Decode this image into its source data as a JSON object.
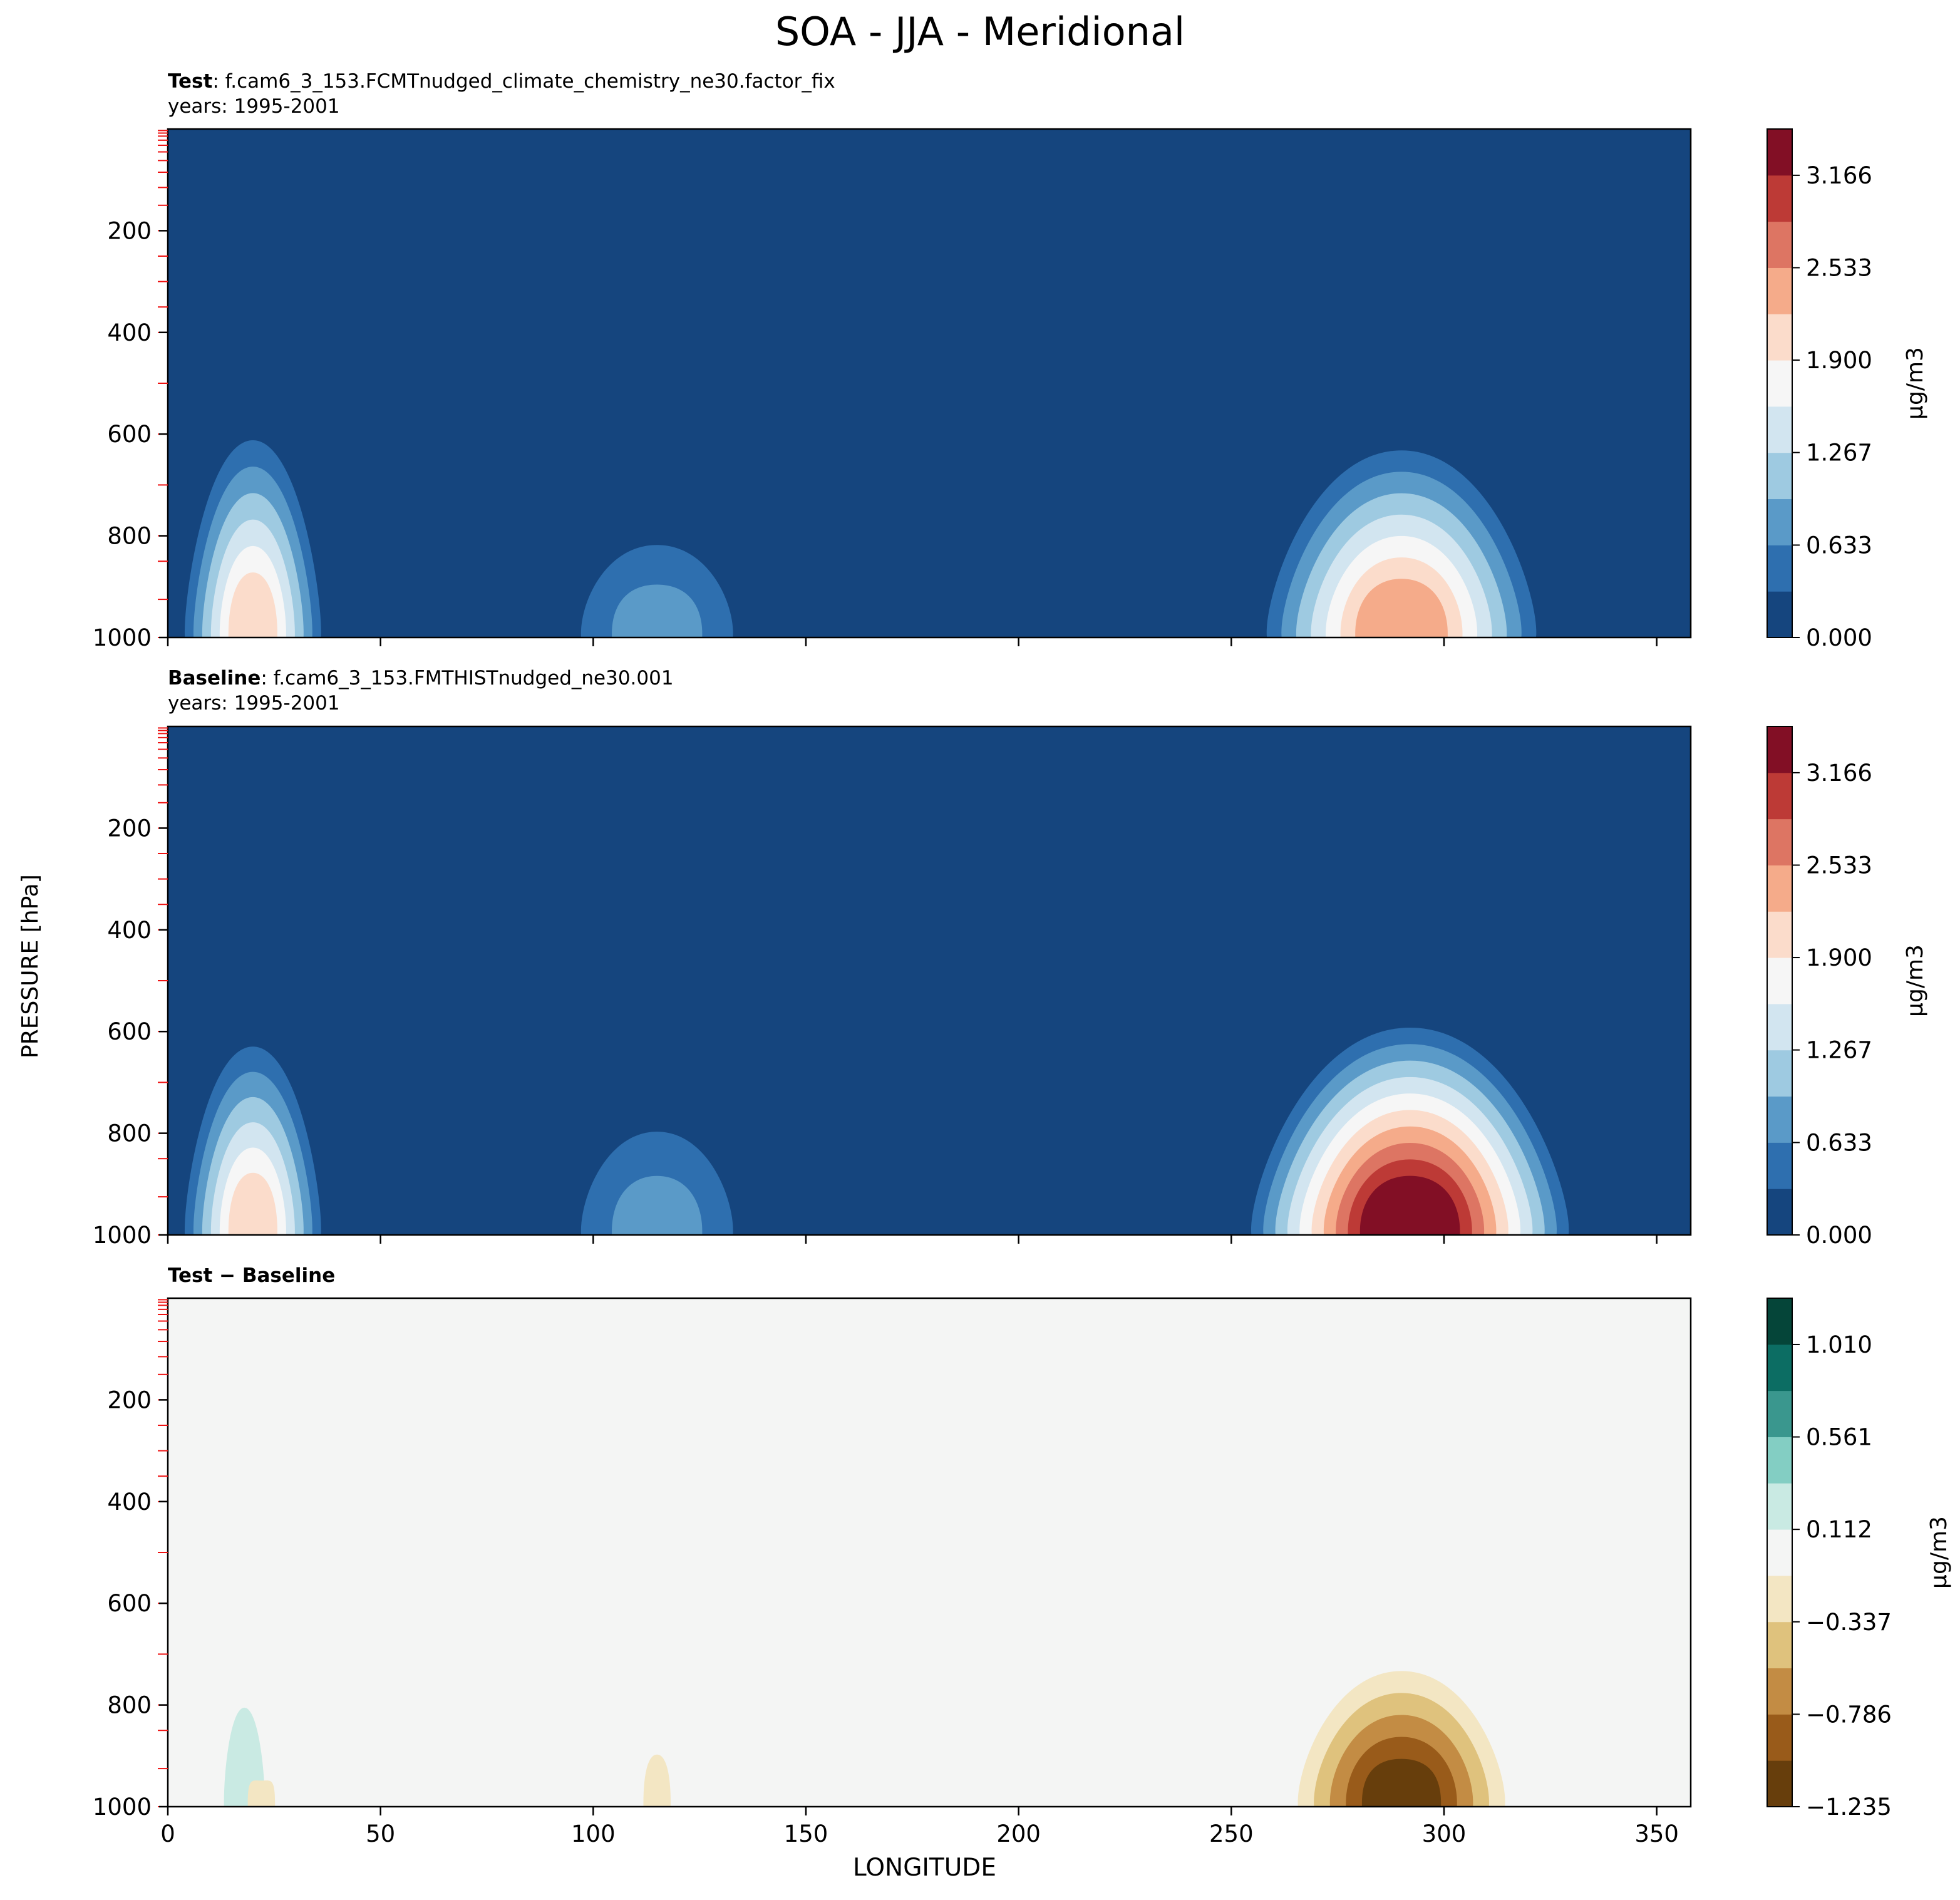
{
  "figure": {
    "title": "SOA - JJA - Meridional",
    "ylabel": "PRESSURE [hPa]",
    "xlabel": "LONGITUDE"
  },
  "panels": [
    {
      "label_bold": "Test",
      "label_text": ": f.cam6_3_153.FCMTnudged_climate_chemistry_ne30.factor_fix",
      "years": "years: 1995-2001"
    },
    {
      "label_bold": "Baseline",
      "label_text": ": f.cam6_3_153.FMTHISTnudged_ne30.001",
      "years": "years: 1995-2001"
    },
    {
      "label_bold": "Test − Baseline",
      "label_text": "",
      "years": ""
    }
  ],
  "colorbars": [
    {
      "units": "μg/m3",
      "ticks": [
        "0.000",
        "0.633",
        "1.267",
        "1.900",
        "2.533",
        "3.166"
      ],
      "tick_values": [
        0,
        0.633,
        1.267,
        1.9,
        2.533,
        3.166
      ],
      "min": 0,
      "max": 3.483,
      "colors": [
        "#15457e",
        "#2e6faf",
        "#5a9ac8",
        "#9ecae1",
        "#d2e5f0",
        "#f6f6f6",
        "#fbdccb",
        "#f5ab8a",
        "#dd7563",
        "#bd3a36",
        "#820f25"
      ]
    },
    {
      "units": "μg/m3",
      "ticks": [
        "0.000",
        "0.633",
        "1.267",
        "1.900",
        "2.533",
        "3.166"
      ],
      "tick_values": [
        0,
        0.633,
        1.267,
        1.9,
        2.533,
        3.166
      ],
      "min": 0,
      "max": 3.483,
      "colors": [
        "#15457e",
        "#2e6faf",
        "#5a9ac8",
        "#9ecae1",
        "#d2e5f0",
        "#f6f6f6",
        "#fbdccb",
        "#f5ab8a",
        "#dd7563",
        "#bd3a36",
        "#820f25"
      ]
    },
    {
      "units": "μg/m3",
      "ticks": [
        "−1.235",
        "−0.786",
        "−0.337",
        "0.112",
        "0.561",
        "1.010"
      ],
      "tick_values": [
        -1.235,
        -0.786,
        -0.337,
        0.112,
        0.561,
        1.01
      ],
      "min": -1.235,
      "max": 1.235,
      "colors": [
        "#673e0c",
        "#995b1a",
        "#c38c44",
        "#dfc27d",
        "#f3e6c3",
        "#f4f5f4",
        "#c9eae3",
        "#83cec3",
        "#3a978e",
        "#0c6d63",
        "#054539"
      ]
    }
  ],
  "chart_data": {
    "type": "heatmap",
    "title": "SOA - JJA - Meridional",
    "xlabel": "LONGITUDE",
    "ylabel": "PRESSURE [hPa]",
    "xlim": [
      0,
      358
    ],
    "ylim": [
      1000,
      0
    ],
    "xticks": [
      0,
      50,
      100,
      150,
      200,
      250,
      300,
      350
    ],
    "yticks": [
      200,
      400,
      600,
      800,
      1000
    ],
    "units": "μg/m3",
    "panels": [
      {
        "name": "Test",
        "background": 0,
        "features": [
          {
            "lon": 20,
            "top_hPa": 560,
            "halfwidth_lon": 18,
            "peak": 1.9
          },
          {
            "lon": 115,
            "top_hPa": 740,
            "halfwidth_lon": 25,
            "peak": 0.9
          },
          {
            "lon": 290,
            "top_hPa": 590,
            "halfwidth_lon": 35,
            "peak": 2.4
          }
        ]
      },
      {
        "name": "Baseline",
        "background": 0,
        "features": [
          {
            "lon": 20,
            "top_hPa": 580,
            "halfwidth_lon": 18,
            "peak": 1.9
          },
          {
            "lon": 115,
            "top_hPa": 710,
            "halfwidth_lon": 25,
            "peak": 0.9
          },
          {
            "lon": 292,
            "top_hPa": 560,
            "halfwidth_lon": 40,
            "peak": 3.4
          }
        ]
      },
      {
        "name": "Test − Baseline",
        "background": 0,
        "features": [
          {
            "lon": 18,
            "top_hPa": 620,
            "halfwidth_lon": 9,
            "peak": 0.2
          },
          {
            "lon": 22,
            "top_hPa": 900,
            "halfwidth_lon": 6,
            "peak": -0.2
          },
          {
            "lon": 115,
            "top_hPa": 800,
            "halfwidth_lon": 6,
            "peak": -0.2
          },
          {
            "lon": 290,
            "top_hPa": 690,
            "halfwidth_lon": 28,
            "peak": -1.2
          }
        ]
      }
    ]
  }
}
